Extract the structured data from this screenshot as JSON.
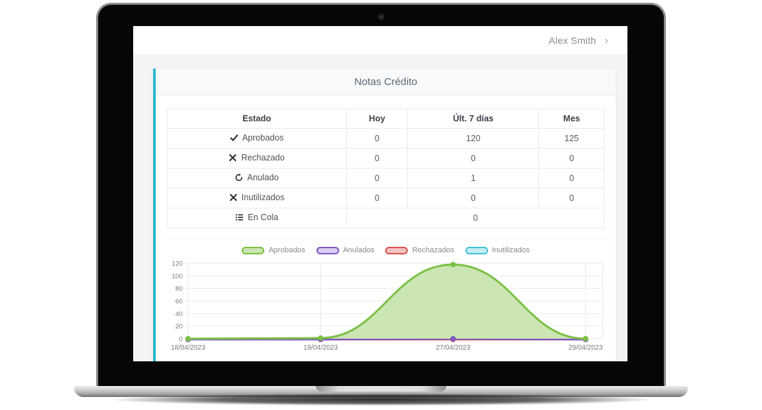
{
  "header": {
    "user_name": "Alex Smith",
    "chevron": "›"
  },
  "colors": {
    "accent_teal": "#2cb9cf",
    "card_header_bg": "#f8f9fb",
    "page_bg": "#f2f4f6",
    "table_border": "#e9ecef"
  },
  "card": {
    "title": "Notas Crédito",
    "table": {
      "columns": [
        "Estado",
        "Hoy",
        "Últ. 7 días",
        "Mes"
      ],
      "rows": [
        {
          "icon": "check-icon",
          "estado": "Aprobados",
          "hoy": "0",
          "ult7": "120",
          "mes": "125"
        },
        {
          "icon": "x-icon",
          "estado": "Rechazado",
          "hoy": "0",
          "ult7": "0",
          "mes": "0"
        },
        {
          "icon": "history-icon",
          "estado": "Anulado",
          "hoy": "0",
          "ult7": "1",
          "mes": "0"
        },
        {
          "icon": "x-icon",
          "estado": "Inutilizados",
          "hoy": "0",
          "ult7": "0",
          "mes": "0"
        },
        {
          "icon": "list-icon",
          "estado": "En Cola",
          "total": "0"
        }
      ]
    },
    "chart_data": {
      "type": "area",
      "x": [
        "18/04/2023",
        "19/04/2023",
        "27/04/2023",
        "29/04/2023"
      ],
      "series": [
        {
          "name": "Aprobados",
          "color": "#7cc144",
          "fill": "#cbe6b3",
          "values": [
            0,
            1,
            118,
            0
          ]
        },
        {
          "name": "Anulados",
          "color": "#7e57c2",
          "fill": "#dbcdf1",
          "values": [
            0,
            0,
            1,
            0
          ]
        },
        {
          "name": "Rechazados",
          "color": "#d9534f",
          "fill": "#f2c3c2",
          "values": [
            0,
            0,
            0,
            0
          ]
        },
        {
          "name": "Inutilizados",
          "color": "#45c0d8",
          "fill": "#c6ecf5",
          "values": [
            0,
            0,
            0,
            0
          ]
        }
      ],
      "ylim": [
        0,
        120
      ],
      "yticks": [
        0,
        20,
        40,
        60,
        80,
        100,
        120
      ],
      "grid": true,
      "legend_position": "top",
      "title": "",
      "xlabel": "",
      "ylabel": ""
    }
  }
}
